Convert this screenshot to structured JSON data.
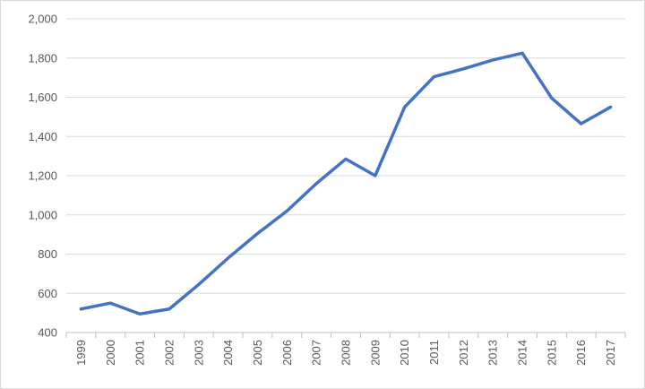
{
  "chart_data": {
    "type": "line",
    "title": "",
    "xlabel": "",
    "ylabel": "",
    "ylim": [
      400,
      2000
    ],
    "y_ticks": [
      400,
      600,
      800,
      1000,
      1200,
      1400,
      1600,
      1800,
      2000
    ],
    "y_tick_labels": [
      "400",
      "600",
      "800",
      "1,000",
      "1,200",
      "1,400",
      "1,600",
      "1,800",
      "2,000"
    ],
    "categories": [
      "1999",
      "2000",
      "2001",
      "2002",
      "2003",
      "2004",
      "2005",
      "2006",
      "2007",
      "2008",
      "2009",
      "2010",
      "2011",
      "2012",
      "2013",
      "2014",
      "2015",
      "2016",
      "2017"
    ],
    "series": [
      {
        "values": [
          520,
          550,
          495,
          520,
          645,
          780,
          905,
          1020,
          1160,
          1285,
          1200,
          1550,
          1705,
          1745,
          1790,
          1825,
          1595,
          1465,
          1550
        ]
      }
    ],
    "grid": true,
    "legend": "none",
    "colors": {
      "series": "#4472c4",
      "grid": "#d9d9d9",
      "axis": "#bfbfbf",
      "text": "#595959"
    }
  }
}
